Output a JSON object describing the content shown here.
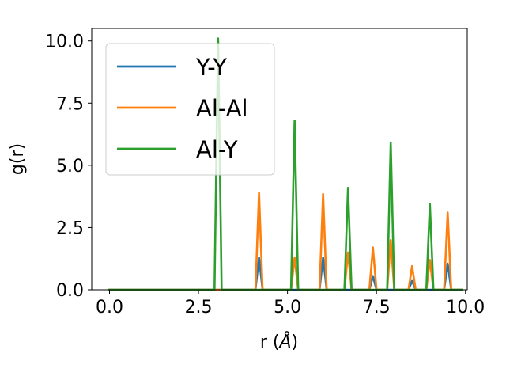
{
  "chart_data": {
    "type": "line",
    "xlabel_text": "r (",
    "xlabel_symbol": "Å",
    "xlabel_close": ")",
    "ylabel": "g(r)",
    "xlim": [
      -0.5,
      10.05
    ],
    "ylim": [
      0,
      10.5
    ],
    "xticks": [
      "0.0",
      "2.5",
      "5.0",
      "7.5",
      "10.0"
    ],
    "xtick_values": [
      0,
      2.5,
      5,
      7.5,
      10
    ],
    "yticks": [
      "0.0",
      "2.5",
      "5.0",
      "7.5",
      "10.0"
    ],
    "ytick_values": [
      0,
      2.5,
      5,
      7.5,
      10
    ],
    "grid": false,
    "legend_position": "top-left",
    "series": [
      {
        "name": "Y-Y",
        "color": "#1f77b4",
        "x": [
          0.0,
          4.1,
          4.2,
          4.3,
          5.9,
          6.0,
          6.1,
          7.3,
          7.4,
          7.5,
          8.4,
          8.5,
          8.6,
          9.4,
          9.5,
          9.6,
          9.9
        ],
        "y": [
          0.0,
          0.0,
          1.3,
          0.0,
          0.0,
          1.3,
          0.0,
          0.0,
          0.55,
          0.0,
          0.0,
          0.35,
          0.0,
          0.0,
          1.05,
          0.0,
          0.0
        ]
      },
      {
        "name": "Al-Al",
        "color": "#ff7f0e",
        "x": [
          0.0,
          4.1,
          4.2,
          4.3,
          5.1,
          5.2,
          5.3,
          5.9,
          6.0,
          6.1,
          6.6,
          6.7,
          6.8,
          7.3,
          7.4,
          7.5,
          7.8,
          7.9,
          8.0,
          8.4,
          8.5,
          8.6,
          8.9,
          9.0,
          9.1,
          9.4,
          9.5,
          9.6,
          9.9
        ],
        "y": [
          0.0,
          0.0,
          3.9,
          0.0,
          0.0,
          1.3,
          0.0,
          0.0,
          3.85,
          0.0,
          0.0,
          1.5,
          0.0,
          0.0,
          1.7,
          0.0,
          0.0,
          2.0,
          0.0,
          0.0,
          0.95,
          0.0,
          0.0,
          1.2,
          0.0,
          0.0,
          3.1,
          0.0,
          0.0
        ]
      },
      {
        "name": "Al-Y",
        "color": "#2ca02c",
        "x": [
          0.0,
          2.95,
          3.05,
          3.15,
          5.1,
          5.2,
          5.3,
          6.6,
          6.7,
          6.8,
          7.8,
          7.9,
          8.0,
          8.9,
          9.0,
          9.1,
          9.9
        ],
        "y": [
          0.0,
          0.0,
          10.1,
          0.0,
          0.0,
          6.8,
          0.0,
          0.0,
          4.1,
          0.0,
          0.0,
          5.9,
          0.0,
          0.0,
          3.45,
          0.0,
          0.0
        ]
      }
    ]
  }
}
